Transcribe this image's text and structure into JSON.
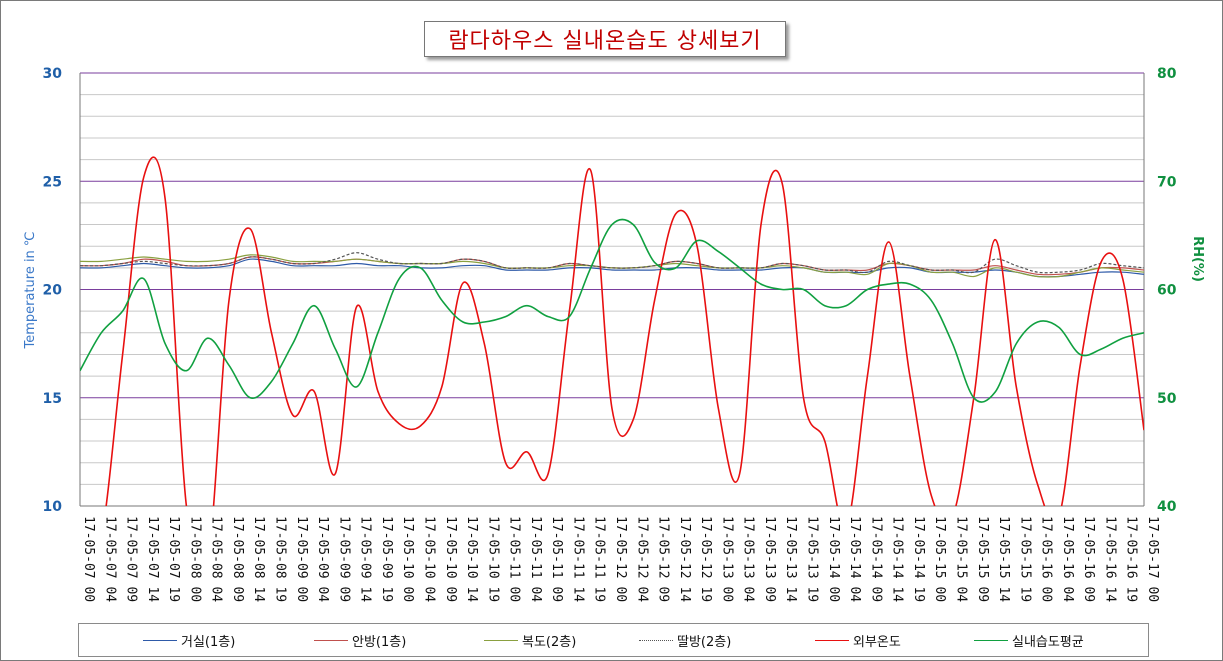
{
  "title": "람다하우스 실내온습도 상세보기",
  "chart_data": {
    "type": "line",
    "title": "람다하우스 실내온습도 상세보기",
    "ylabel_left": "Temperature in ℃",
    "ylabel_right": "RH(%)",
    "ylim_left": [
      10,
      30
    ],
    "ylim_right": [
      40,
      80
    ],
    "yticks_left": [
      "10",
      "15",
      "20",
      "25",
      "30"
    ],
    "yticks_right": [
      "40",
      "50",
      "60",
      "70",
      "80"
    ],
    "x_labels": [
      "17-05-07 00",
      "17-05-07 04",
      "17-05-07 09",
      "17-05-07 14",
      "17-05-07 19",
      "17-05-08 00",
      "17-05-08 04",
      "17-05-08 09",
      "17-05-08 14",
      "17-05-08 19",
      "17-05-09 00",
      "17-05-09 04",
      "17-05-09 09",
      "17-05-09 14",
      "17-05-09 19",
      "17-05-10 00",
      "17-05-10 04",
      "17-05-10 09",
      "17-05-10 14",
      "17-05-10 19",
      "17-05-11 00",
      "17-05-11 04",
      "17-05-11 09",
      "17-05-11 14",
      "17-05-11 19",
      "17-05-12 00",
      "17-05-12 04",
      "17-05-12 09",
      "17-05-12 14",
      "17-05-12 19",
      "17-05-13 00",
      "17-05-13 04",
      "17-05-13 09",
      "17-05-13 14",
      "17-05-13 19",
      "17-05-14 00",
      "17-05-14 04",
      "17-05-14 09",
      "17-05-14 14",
      "17-05-14 19",
      "17-05-15 00",
      "17-05-15 04",
      "17-05-15 09",
      "17-05-15 14",
      "17-05-15 19",
      "17-05-16 00",
      "17-05-16 04",
      "17-05-16 09",
      "17-05-16 14",
      "17-05-16 19",
      "17-05-17 00"
    ],
    "legend_position": "bottom",
    "grid": true,
    "series": [
      {
        "name": "거실(1층)",
        "axis": "left",
        "color": "#2e5aa8",
        "dash": "solid",
        "values": [
          21.0,
          21.0,
          21.1,
          21.2,
          21.1,
          21.0,
          21.0,
          21.1,
          21.4,
          21.3,
          21.1,
          21.1,
          21.1,
          21.2,
          21.1,
          21.1,
          21.0,
          21.0,
          21.1,
          21.1,
          20.9,
          20.9,
          20.9,
          21.0,
          21.0,
          20.9,
          20.9,
          20.9,
          21.0,
          21.0,
          20.9,
          20.9,
          20.9,
          21.0,
          21.0,
          20.8,
          20.8,
          20.8,
          21.0,
          21.0,
          20.8,
          20.8,
          20.8,
          20.9,
          20.8,
          20.6,
          20.6,
          20.7,
          20.8,
          20.8,
          20.7
        ]
      },
      {
        "name": "안방(1층)",
        "axis": "left",
        "color": "#c0504d",
        "dash": "solid",
        "values": [
          21.1,
          21.1,
          21.2,
          21.4,
          21.3,
          21.1,
          21.1,
          21.2,
          21.5,
          21.4,
          21.2,
          21.2,
          21.3,
          21.4,
          21.3,
          21.2,
          21.2,
          21.2,
          21.4,
          21.3,
          21.0,
          21.0,
          21.0,
          21.2,
          21.1,
          21.0,
          21.0,
          21.1,
          21.3,
          21.2,
          21.0,
          21.0,
          21.0,
          21.2,
          21.1,
          20.9,
          20.9,
          20.9,
          21.2,
          21.1,
          20.9,
          20.9,
          20.9,
          21.1,
          20.9,
          20.7,
          20.7,
          20.8,
          21.0,
          21.0,
          20.9
        ]
      },
      {
        "name": "복도(2층)",
        "axis": "left",
        "color": "#8aa040",
        "dash": "solid",
        "values": [
          21.3,
          21.3,
          21.4,
          21.5,
          21.4,
          21.3,
          21.3,
          21.4,
          21.6,
          21.5,
          21.3,
          21.3,
          21.3,
          21.4,
          21.3,
          21.2,
          21.2,
          21.2,
          21.3,
          21.2,
          21.0,
          21.0,
          21.0,
          21.1,
          21.1,
          21.0,
          21.0,
          21.1,
          21.2,
          21.1,
          21.0,
          21.0,
          21.0,
          21.1,
          21.0,
          20.8,
          20.8,
          20.7,
          21.2,
          21.1,
          20.8,
          20.8,
          20.6,
          21.0,
          20.8,
          20.6,
          20.6,
          20.8,
          21.0,
          20.9,
          20.8
        ]
      },
      {
        "name": "딸방(2층)",
        "axis": "left",
        "color": "#555555",
        "dash": "dotted",
        "values": [
          21.1,
          21.1,
          21.2,
          21.3,
          21.2,
          21.1,
          21.1,
          21.2,
          21.5,
          21.4,
          21.2,
          21.2,
          21.4,
          21.7,
          21.4,
          21.2,
          21.2,
          21.2,
          21.4,
          21.3,
          21.0,
          21.0,
          21.0,
          21.2,
          21.1,
          21.0,
          21.0,
          21.1,
          21.3,
          21.2,
          21.0,
          21.0,
          21.0,
          21.2,
          21.1,
          20.9,
          20.9,
          20.8,
          21.3,
          21.1,
          20.9,
          20.9,
          20.8,
          21.4,
          21.1,
          20.8,
          20.8,
          20.9,
          21.2,
          21.1,
          21.0
        ]
      },
      {
        "name": "외부온도",
        "axis": "left",
        "color": "#e81010",
        "dash": "solid",
        "values": [
          6.5,
          8.5,
          17.0,
          25.2,
          24.2,
          10.0,
          7.5,
          19.5,
          22.8,
          18.0,
          14.2,
          15.3,
          11.5,
          19.2,
          15.3,
          13.8,
          13.7,
          15.5,
          20.3,
          17.5,
          12.0,
          12.5,
          11.5,
          19.0,
          25.5,
          14.5,
          14.0,
          19.5,
          23.5,
          22.0,
          14.5,
          11.5,
          23.0,
          24.9,
          15.0,
          13.0,
          9.0,
          16.0,
          22.2,
          16.0,
          10.5,
          9.5,
          15.0,
          22.3,
          15.5,
          11.0,
          9.5,
          16.5,
          21.3,
          20.5,
          13.5
        ]
      },
      {
        "name": "실내습도평균",
        "axis": "right",
        "color": "#10a040",
        "dash": "solid",
        "values": [
          52.5,
          56.0,
          58.0,
          61.0,
          55.0,
          52.5,
          55.5,
          53.0,
          50.0,
          51.5,
          55.0,
          58.5,
          54.5,
          51.0,
          56.0,
          61.0,
          62.0,
          59.0,
          57.0,
          57.0,
          57.5,
          58.5,
          57.5,
          57.5,
          62.0,
          66.0,
          66.0,
          62.5,
          62.0,
          64.5,
          63.5,
          62.0,
          60.5,
          60.0,
          60.0,
          58.5,
          58.5,
          60.0,
          60.5,
          60.5,
          59.0,
          55.0,
          50.0,
          50.5,
          55.0,
          57.0,
          56.5,
          54.0,
          54.5,
          55.5,
          56.0
        ]
      }
    ]
  }
}
